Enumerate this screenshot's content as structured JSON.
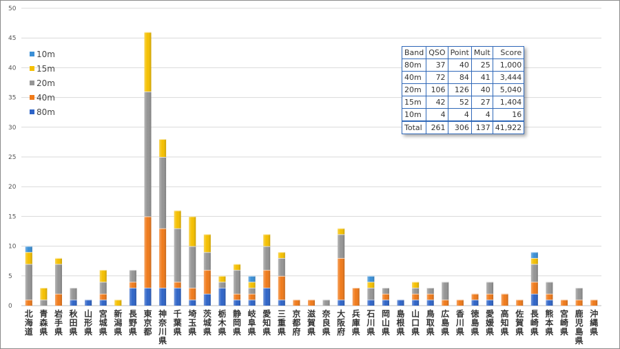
{
  "chart_data": {
    "type": "bar",
    "stacked": true,
    "ylim": [
      0,
      50
    ],
    "yticks": [
      "0",
      "5",
      "10",
      "15",
      "20",
      "25",
      "30",
      "35",
      "40",
      "45",
      "50"
    ],
    "grid": true,
    "legend_position": "left",
    "categories": [
      "北海道",
      "青森県",
      "岩手県",
      "秋田県",
      "山形県",
      "宮城県",
      "新潟県",
      "長野県",
      "東京都",
      "神奈川県",
      "千葉県",
      "埼玉県",
      "茨城県",
      "栃木県",
      "静岡県",
      "岐阜県",
      "愛知県",
      "三重県",
      "京都府",
      "滋賀県",
      "奈良県",
      "大阪府",
      "兵庫県",
      "石川県",
      "岡山県",
      "島根県",
      "山口県",
      "鳥取県",
      "広島県",
      "香川県",
      "徳島県",
      "愛媛県",
      "高知県",
      "佐賀県",
      "長崎県",
      "熊本県",
      "宮崎県",
      "鹿児島県",
      "沖縄県"
    ],
    "series": [
      {
        "name": "80m",
        "color": "#2e64c8",
        "values": [
          0,
          0,
          0,
          1,
          1,
          1,
          0,
          3,
          3,
          3,
          3,
          1,
          2,
          3,
          1,
          1,
          3,
          1,
          0,
          0,
          0,
          1,
          0,
          1,
          1,
          1,
          1,
          1,
          0,
          0,
          1,
          1,
          0,
          0,
          2,
          1,
          0,
          0,
          0
        ]
      },
      {
        "name": "40m",
        "color": "#f07a1a",
        "values": [
          1,
          0,
          2,
          0,
          0,
          1,
          0,
          1,
          12,
          10,
          1,
          2,
          4,
          0,
          1,
          1,
          3,
          4,
          1,
          1,
          0,
          7,
          3,
          0,
          1,
          0,
          1,
          1,
          1,
          1,
          1,
          1,
          2,
          1,
          2,
          1,
          1,
          1,
          1
        ]
      },
      {
        "name": "20m",
        "color": "#959595",
        "values": [
          6,
          1,
          5,
          2,
          0,
          2,
          0,
          2,
          21,
          12,
          9,
          7,
          3,
          1,
          4,
          1,
          4,
          3,
          0,
          0,
          1,
          4,
          0,
          2,
          1,
          0,
          1,
          1,
          3,
          0,
          0,
          2,
          0,
          0,
          3,
          2,
          0,
          2,
          0
        ]
      },
      {
        "name": "15m",
        "color": "#f5c000",
        "values": [
          2,
          2,
          1,
          0,
          0,
          2,
          1,
          0,
          10,
          3,
          3,
          5,
          3,
          1,
          1,
          1,
          2,
          1,
          0,
          0,
          0,
          1,
          0,
          1,
          0,
          0,
          1,
          0,
          0,
          0,
          0,
          0,
          0,
          0,
          1,
          0,
          0,
          0,
          0
        ]
      },
      {
        "name": "10m",
        "color": "#3a8fd6",
        "values": [
          1,
          0,
          0,
          0,
          0,
          0,
          0,
          0,
          0,
          0,
          0,
          0,
          0,
          0,
          0,
          1,
          0,
          0,
          0,
          0,
          0,
          0,
          0,
          1,
          0,
          0,
          0,
          0,
          0,
          0,
          0,
          0,
          0,
          0,
          1,
          0,
          0,
          0,
          0
        ]
      }
    ]
  },
  "legend": [
    {
      "label": "10m",
      "color": "#3a8fd6"
    },
    {
      "label": "15m",
      "color": "#f5c000"
    },
    {
      "label": "20m",
      "color": "#959595"
    },
    {
      "label": "40m",
      "color": "#f07a1a"
    },
    {
      "label": "80m",
      "color": "#2e64c8"
    }
  ],
  "table": {
    "headers": [
      "Band",
      "QSO",
      "Point",
      "Mult",
      "Score"
    ],
    "rows": [
      [
        "80m",
        "37",
        "40",
        "25",
        "1,000"
      ],
      [
        "40m",
        "72",
        "84",
        "41",
        "3,444"
      ],
      [
        "20m",
        "106",
        "126",
        "40",
        "5,040"
      ],
      [
        "15m",
        "42",
        "52",
        "27",
        "1,404"
      ],
      [
        "10m",
        "4",
        "4",
        "4",
        "16"
      ]
    ],
    "total": [
      "Total",
      "261",
      "306",
      "137",
      "41,922"
    ]
  }
}
